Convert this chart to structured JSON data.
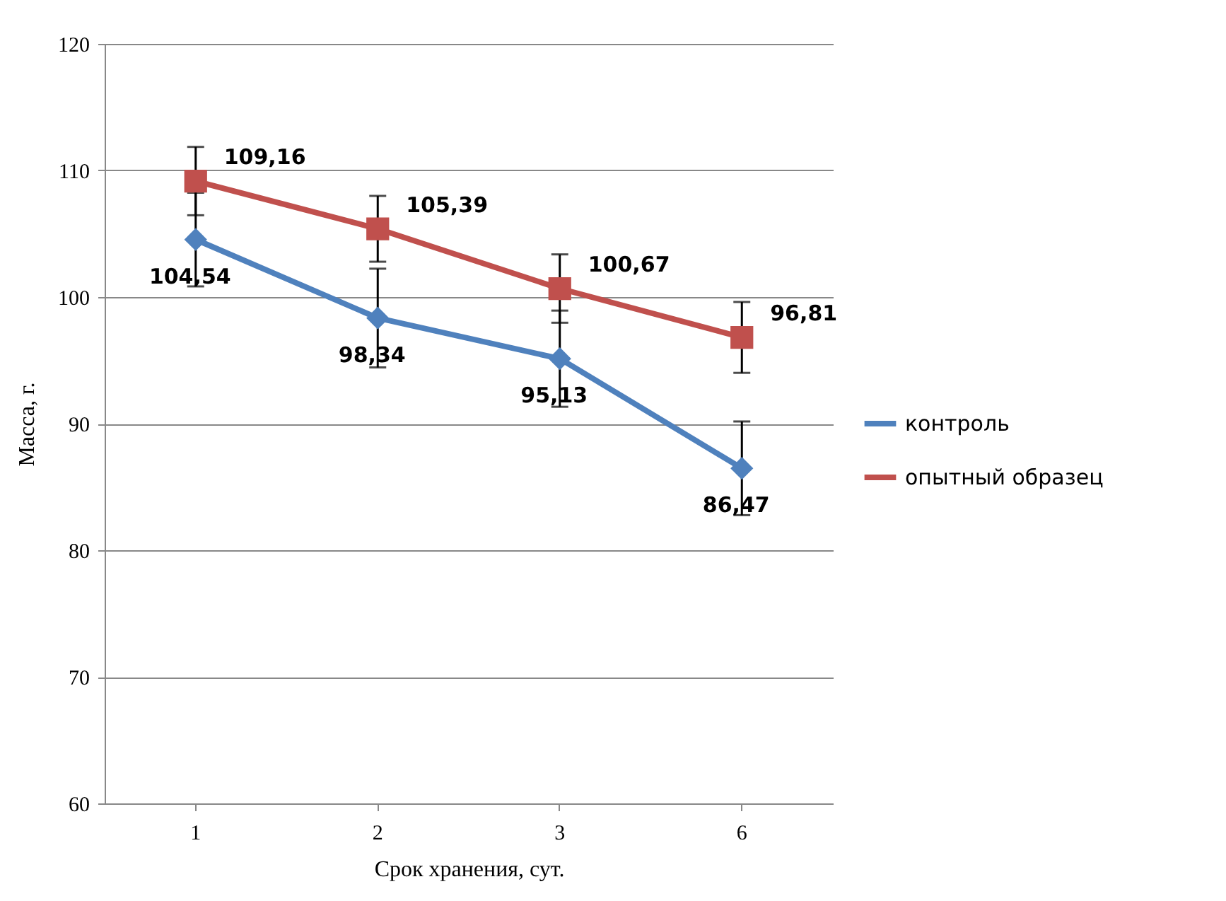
{
  "chart_data": {
    "type": "line",
    "xlabel": "Срок хранения, сут.",
    "ylabel": "Масса, г.",
    "categories": [
      "1",
      "2",
      "3",
      "6"
    ],
    "ylim": [
      60,
      120
    ],
    "yticks": [
      60,
      70,
      80,
      90,
      100,
      110,
      120
    ],
    "grid": "y",
    "legend": "right",
    "series": [
      {
        "name": "контроль",
        "color": "#4f81bd",
        "marker": "diamond",
        "values": [
          104.54,
          98.34,
          95.13,
          86.47
        ],
        "value_labels": [
          "104,54",
          "98,34",
          "95,13",
          "86,47"
        ],
        "errors": [
          3.7,
          3.9,
          3.8,
          3.7
        ]
      },
      {
        "name": "опытный образец",
        "color": "#c0504d",
        "marker": "square",
        "values": [
          109.16,
          105.39,
          100.67,
          96.81
        ],
        "value_labels": [
          "109,16",
          "105,39",
          "100,67",
          "96,81"
        ],
        "errors": [
          2.7,
          2.6,
          2.7,
          2.8
        ]
      }
    ]
  }
}
